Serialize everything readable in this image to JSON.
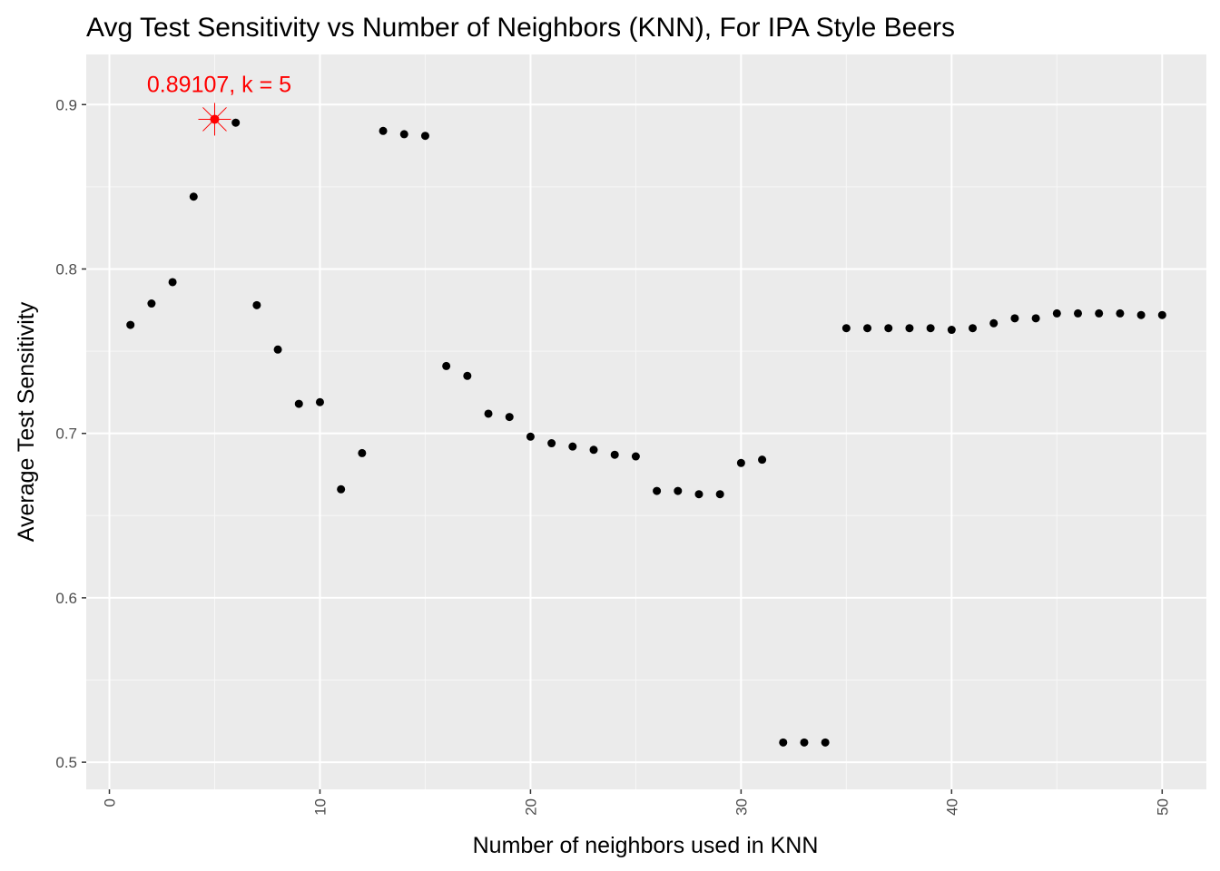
{
  "chart_data": {
    "type": "scatter",
    "title": "Avg Test Sensitivity vs Number of Neighbors (KNN), For IPA Style Beers",
    "xlabel": "Number of neighbors used in KNN",
    "ylabel": "Average Test Sensitivity",
    "xlim": [
      -1.1,
      52.1
    ],
    "ylim": [
      0.4835,
      0.9305
    ],
    "x_ticks": [
      0,
      10,
      20,
      30,
      40,
      50
    ],
    "x_tick_labels": [
      "0",
      "10",
      "20",
      "30",
      "40",
      "50"
    ],
    "y_ticks": [
      0.5,
      0.6,
      0.7,
      0.8,
      0.9
    ],
    "y_tick_labels": [
      "0.5",
      "0.6",
      "0.7",
      "0.8",
      "0.9"
    ],
    "grid": true,
    "background": "#ebebeb",
    "point_color": "#000000",
    "highlight_color": "#ff0000",
    "series": [
      {
        "x": [
          1,
          2,
          3,
          4,
          5,
          6,
          7,
          8,
          9,
          10,
          11,
          12,
          13,
          14,
          15,
          16,
          17,
          18,
          19,
          20,
          21,
          22,
          23,
          24,
          25,
          26,
          27,
          28,
          29,
          30,
          31,
          32,
          33,
          34,
          35,
          36,
          37,
          38,
          39,
          40,
          41,
          42,
          43,
          44,
          45,
          46,
          47,
          48,
          49,
          50
        ],
        "y": [
          0.766,
          0.779,
          0.792,
          0.844,
          0.89107,
          0.889,
          0.778,
          0.751,
          0.718,
          0.719,
          0.666,
          0.688,
          0.884,
          0.882,
          0.881,
          0.741,
          0.735,
          0.712,
          0.71,
          0.698,
          0.694,
          0.692,
          0.69,
          0.687,
          0.686,
          0.665,
          0.665,
          0.663,
          0.663,
          0.682,
          0.684,
          0.512,
          0.512,
          0.512,
          0.764,
          0.764,
          0.764,
          0.764,
          0.764,
          0.763,
          0.764,
          0.767,
          0.77,
          0.77,
          0.773,
          0.773,
          0.773,
          0.773,
          0.772,
          0.772
        ]
      }
    ],
    "highlight": {
      "x": 5,
      "y": 0.89107,
      "label": "0.89107, k = 5"
    }
  }
}
